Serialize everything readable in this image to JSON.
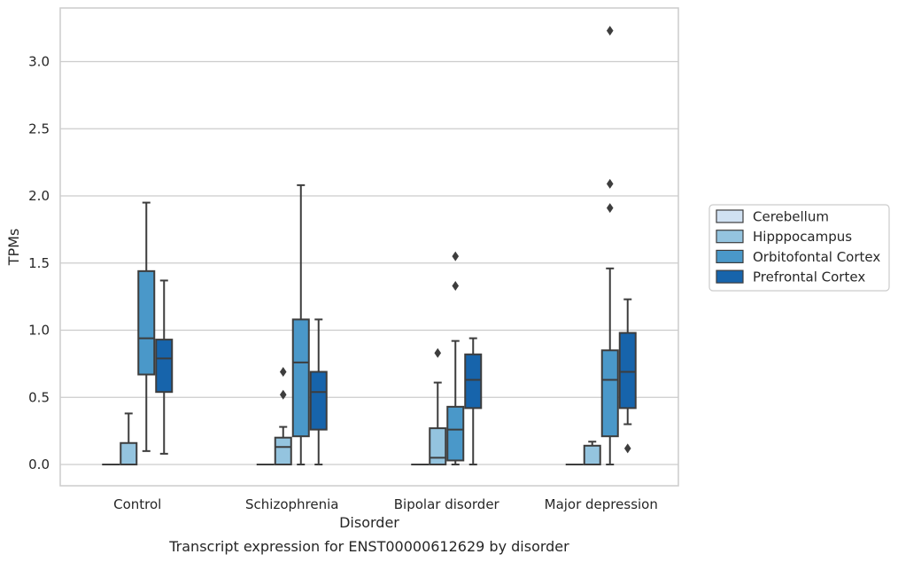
{
  "chart_data": {
    "type": "boxplot",
    "title": "Transcript expression for ENST00000612629 by disorder",
    "xlabel": "Disorder",
    "ylabel": "TPMs",
    "ylim": [
      -0.16,
      3.4
    ],
    "yticks": [
      "0.0",
      "0.5",
      "1.0",
      "1.5",
      "2.0",
      "2.5",
      "3.0"
    ],
    "grid": true,
    "legend_position": "right",
    "categories": [
      "Control",
      "Schizophrenia",
      "Bipolar disorder",
      "Major depression"
    ],
    "series": [
      {
        "name": "Cerebellum",
        "color": "#d0e1f2",
        "boxes": [
          {
            "category": "Control",
            "min": 0,
            "q1": 0,
            "median": 0,
            "q3": 0,
            "max": 0,
            "outliers": []
          },
          {
            "category": "Schizophrenia",
            "min": 0,
            "q1": 0,
            "median": 0,
            "q3": 0,
            "max": 0,
            "outliers": []
          },
          {
            "category": "Bipolar disorder",
            "min": 0,
            "q1": 0,
            "median": 0,
            "q3": 0,
            "max": 0,
            "outliers": []
          },
          {
            "category": "Major depression",
            "min": 0,
            "q1": 0,
            "median": 0,
            "q3": 0,
            "max": 0,
            "outliers": []
          }
        ]
      },
      {
        "name": "Hipppocampus",
        "color": "#94c4df",
        "boxes": [
          {
            "category": "Control",
            "min": 0,
            "q1": 0,
            "median": 0,
            "q3": 0.16,
            "max": 0.38,
            "outliers": []
          },
          {
            "category": "Schizophrenia",
            "min": 0,
            "q1": 0,
            "median": 0.13,
            "q3": 0.2,
            "max": 0.28,
            "outliers": [
              0.52,
              0.69
            ]
          },
          {
            "category": "Bipolar disorder",
            "min": 0,
            "q1": 0,
            "median": 0.05,
            "q3": 0.27,
            "max": 0.61,
            "outliers": [
              0.83
            ]
          },
          {
            "category": "Major depression",
            "min": 0,
            "q1": 0,
            "median": 0,
            "q3": 0.14,
            "max": 0.17,
            "outliers": []
          }
        ]
      },
      {
        "name": "Orbitofontal Cortex",
        "color": "#4a98c9",
        "boxes": [
          {
            "category": "Control",
            "min": 0.1,
            "q1": 0.67,
            "median": 0.94,
            "q3": 1.44,
            "max": 1.95,
            "outliers": []
          },
          {
            "category": "Schizophrenia",
            "min": 0,
            "q1": 0.21,
            "median": 0.76,
            "q3": 1.08,
            "max": 2.08,
            "outliers": []
          },
          {
            "category": "Bipolar disorder",
            "min": 0,
            "q1": 0.03,
            "median": 0.26,
            "q3": 0.43,
            "max": 0.92,
            "outliers": [
              1.33,
              1.55
            ]
          },
          {
            "category": "Major depression",
            "min": 0,
            "q1": 0.21,
            "median": 0.63,
            "q3": 0.85,
            "max": 1.46,
            "outliers": [
              1.91,
              2.09,
              3.23
            ]
          }
        ]
      },
      {
        "name": "Prefrontal Cortex",
        "color": "#1764ab",
        "boxes": [
          {
            "category": "Control",
            "min": 0.08,
            "q1": 0.54,
            "median": 0.79,
            "q3": 0.93,
            "max": 1.37,
            "outliers": []
          },
          {
            "category": "Schizophrenia",
            "min": 0,
            "q1": 0.26,
            "median": 0.54,
            "q3": 0.69,
            "max": 1.08,
            "outliers": []
          },
          {
            "category": "Bipolar disorder",
            "min": 0,
            "q1": 0.42,
            "median": 0.63,
            "q3": 0.82,
            "max": 0.94,
            "outliers": []
          },
          {
            "category": "Major depression",
            "min": 0.3,
            "q1": 0.42,
            "median": 0.69,
            "q3": 0.98,
            "max": 1.23,
            "outliers": [
              0.12
            ]
          }
        ]
      }
    ]
  }
}
